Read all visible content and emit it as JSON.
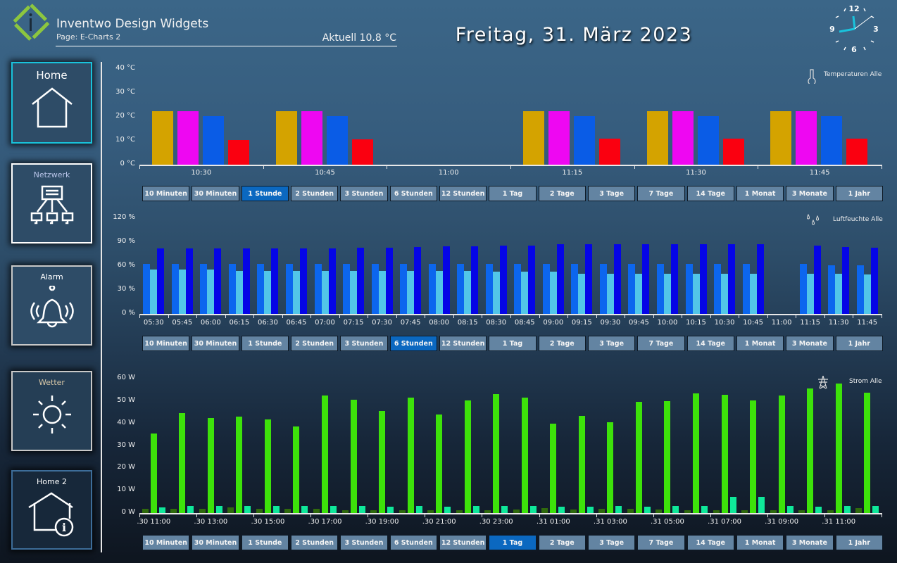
{
  "header": {
    "app_title": "Inventwo Design Widgets",
    "page_label": "Page: E-Charts 2",
    "current_temp": "Aktuell 10.8 °C",
    "date": "Freitag, 31. März 2023",
    "logo_letter": "i",
    "clock": {
      "numbers": [
        "12",
        "3",
        "6",
        "9"
      ],
      "time": "11:45",
      "accent": "#19c3dc"
    }
  },
  "colors": {
    "logo": "#8cc63f",
    "selected_button": "#0b68c0",
    "button": "#6384a2"
  },
  "sidebar": {
    "items": [
      {
        "label": "Home",
        "icon": "house-icon",
        "border": "#19c3dc"
      },
      {
        "label": "Netzwerk",
        "icon": "network-icon",
        "border": "#ffffff"
      },
      {
        "label": "Alarm",
        "icon": "bell-icon",
        "border": "#c8c8c8"
      },
      {
        "label": "Wetter",
        "icon": "sun-icon",
        "border": "#c8c8c8"
      },
      {
        "label": "Home 2",
        "icon": "house-info-icon",
        "border": "#3d6d99"
      }
    ]
  },
  "range_buttons": [
    "10 Minuten",
    "30 Minuten",
    "1 Stunde",
    "2 Stunden",
    "3 Stunden",
    "6 Stunden",
    "12 Stunden",
    "1 Tag",
    "2 Tage",
    "3 Tage",
    "7 Tage",
    "14 Tage",
    "1 Monat",
    "3 Monate",
    "1 Jahr"
  ],
  "chart_data": [
    {
      "type": "bar",
      "title": "Temperaturen Alle",
      "icon": "thermometer-icon",
      "selected_range": "1 Stunde",
      "ylim": [
        0,
        40
      ],
      "yticks": [
        "0 °C",
        "10 °C",
        "20 °C",
        "30 °C",
        "40 °C"
      ],
      "categories": [
        "10:30",
        "10:45",
        "11:00",
        "11:15",
        "11:30",
        "11:45"
      ],
      "series": [
        {
          "color": "#d4a300",
          "values": [
            22.5,
            22.5,
            null,
            22.5,
            22.5,
            22.5
          ]
        },
        {
          "color": "#ee07f2",
          "values": [
            22.3,
            22.3,
            null,
            22.3,
            22.3,
            22.3
          ]
        },
        {
          "color": "#0a5ce6",
          "values": [
            20.3,
            20.3,
            null,
            20.3,
            20.3,
            20.3
          ]
        },
        {
          "color": "#fa0010",
          "values": [
            10.4,
            10.5,
            null,
            10.8,
            10.8,
            10.9
          ]
        }
      ]
    },
    {
      "type": "bar",
      "title": "Luftfeuchte Alle",
      "icon": "droplets-icon",
      "selected_range": "6 Stunden",
      "ylim": [
        0,
        120
      ],
      "yticks": [
        "0 %",
        "30 %",
        "60 %",
        "90 %",
        "120 %"
      ],
      "categories": [
        "05:30",
        "05:45",
        "06:00",
        "06:15",
        "06:30",
        "06:45",
        "07:00",
        "07:15",
        "07:30",
        "07:45",
        "08:00",
        "08:15",
        "08:30",
        "08:45",
        "09:00",
        "09:15",
        "09:30",
        "09:45",
        "10:00",
        "10:15",
        "10:30",
        "10:45",
        "11:00",
        "11:15",
        "11:30",
        "11:45"
      ],
      "series": [
        {
          "color": "#0c66ee",
          "values": [
            63,
            63,
            63,
            63,
            63,
            63,
            63,
            63,
            63,
            63,
            63,
            63,
            63,
            63,
            63,
            63,
            63,
            63,
            63,
            63,
            63,
            63,
            null,
            63,
            61,
            61
          ]
        },
        {
          "color": "#52c6e8",
          "values": [
            56,
            56,
            56,
            54,
            54,
            54,
            54,
            54,
            54,
            54,
            54,
            54,
            53,
            53,
            53,
            50,
            50,
            50,
            50,
            50,
            50,
            50,
            null,
            50,
            50,
            49
          ]
        },
        {
          "color": "#0505e6",
          "values": [
            82,
            82,
            82,
            82,
            82,
            82,
            82,
            83,
            83,
            84,
            85,
            85,
            86,
            86,
            87,
            87,
            87,
            87,
            87,
            87,
            87,
            87,
            null,
            86,
            84,
            83
          ]
        }
      ]
    },
    {
      "type": "bar",
      "title": "Strom Alle",
      "icon": "power-pylon-icon",
      "selected_range": "1 Tag",
      "ylim": [
        0,
        60
      ],
      "yticks": [
        "0 W",
        "10 W",
        "20 W",
        "30 W",
        "40 W",
        "50 W",
        "60 W"
      ],
      "categories": [
        ".30 11:00",
        ".30 12:00",
        ".30 13:00",
        ".30 14:00",
        ".30 15:00",
        ".30 16:00",
        ".30 17:00",
        ".30 18:00",
        ".30 19:00",
        ".30 20:00",
        ".30 21:00",
        ".30 22:00",
        ".30 23:00",
        ".31 00:00",
        ".31 01:00",
        ".31 02:00",
        ".31 03:00",
        ".31 04:00",
        ".31 05:00",
        ".31 06:00",
        ".31 07:00",
        ".31 08:00",
        ".31 09:00",
        ".31 10:00",
        ".31 11:00",
        ".31 12:00"
      ],
      "tick_labels": [
        ".30 11:00",
        ".30 13:00",
        ".30 15:00",
        ".30 17:00",
        ".30 19:00",
        ".30 21:00",
        ".30 23:00",
        ".31 01:00",
        ".31 03:00",
        ".31 05:00",
        ".31 07:00",
        ".31 09:00",
        ".31 11:00"
      ],
      "series": [
        {
          "color": "#2f6a0c",
          "values": [
            1.8,
            1.9,
            1.9,
            2.5,
            1.9,
            1.9,
            1.9,
            1.3,
            1.3,
            1.3,
            1.3,
            1.3,
            1.3,
            1.5,
            2.2,
            1.5,
            1.9,
            1.9,
            1.5,
            1.2,
            1.2,
            1.2,
            1.2,
            1.2,
            1.2,
            2.2
          ]
        },
        {
          "color": "#3de20a",
          "values": [
            35.6,
            44.7,
            42.4,
            43.1,
            41.7,
            38.6,
            52.4,
            50.7,
            45.6,
            51.5,
            43.9,
            50.3,
            53.2,
            51.4,
            39.8,
            43.4,
            40.4,
            49.6,
            50.1,
            53.5,
            52.7,
            50.4,
            52.4,
            55.6,
            57.9,
            53.8
          ]
        },
        {
          "color": "#0fe89a",
          "values": [
            2.5,
            3.0,
            3.0,
            3.0,
            3.0,
            3.0,
            3.0,
            3.0,
            2.9,
            3.0,
            2.9,
            3.0,
            3.0,
            3.0,
            2.8,
            2.8,
            3.0,
            2.9,
            3.0,
            3.0,
            7.1,
            7.2,
            3.0,
            2.9,
            3.0,
            3.0
          ]
        }
      ]
    }
  ]
}
